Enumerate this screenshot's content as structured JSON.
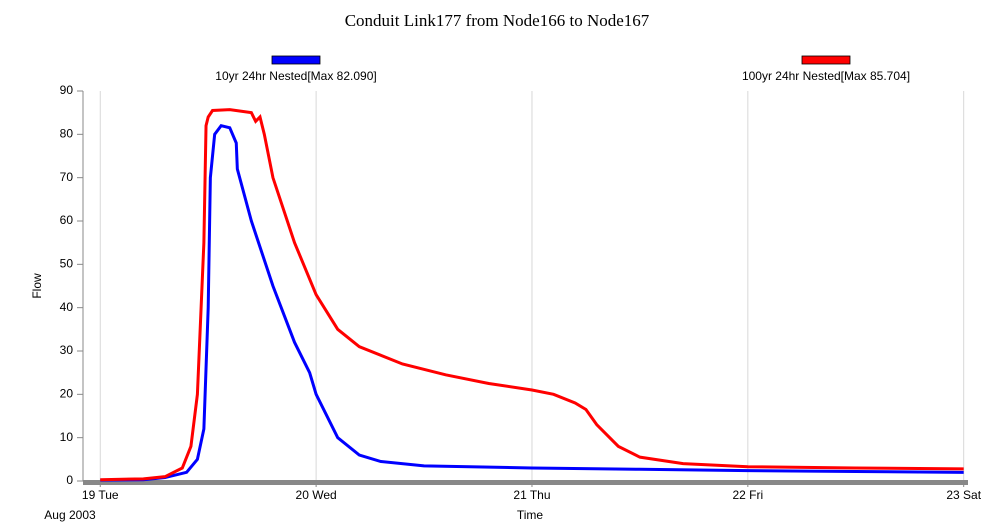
{
  "chart_data": {
    "type": "line",
    "title": "Conduit Link177 from Node166 to Node167",
    "x_label": "Time",
    "y_label": "Flow",
    "x_sublabel": "Aug 2003",
    "xlim": [
      -0.08,
      4.02
    ],
    "xticks": [
      {
        "value": 0,
        "label": "19 Tue"
      },
      {
        "value": 1,
        "label": "20 Wed"
      },
      {
        "value": 2,
        "label": "21 Thu"
      },
      {
        "value": 3,
        "label": "22 Fri"
      },
      {
        "value": 4,
        "label": "23 Sat"
      }
    ],
    "ylim": [
      0,
      90
    ],
    "yticks": [
      0,
      10,
      20,
      30,
      40,
      50,
      60,
      70,
      80,
      90
    ],
    "grid": true,
    "series": [
      {
        "name": "10yr 24hr Nested[Max 82.090]",
        "color": "#0000ff",
        "x": [
          0,
          0.2,
          0.3,
          0.4,
          0.45,
          0.48,
          0.5,
          0.51,
          0.53,
          0.56,
          0.6,
          0.63,
          0.635,
          0.7,
          0.8,
          0.9,
          0.97,
          1.0,
          1.1,
          1.2,
          1.3,
          1.5,
          2,
          2.5,
          3,
          3.5,
          4
        ],
        "values": [
          0.2,
          0.3,
          0.8,
          2,
          5,
          12,
          40,
          70,
          80,
          82,
          81.5,
          78,
          72,
          60,
          45,
          32,
          25,
          20,
          10,
          6,
          4.5,
          3.5,
          3,
          2.7,
          2.4,
          2.2,
          2
        ]
      },
      {
        "name": "100yr 24hr Nested[Max 85.704]",
        "color": "#ff0000",
        "x": [
          0,
          0.2,
          0.3,
          0.38,
          0.42,
          0.45,
          0.48,
          0.49,
          0.5,
          0.52,
          0.6,
          0.7,
          0.72,
          0.74,
          0.76,
          0.8,
          0.9,
          1.0,
          1.1,
          1.2,
          1.4,
          1.6,
          1.8,
          2.0,
          2.1,
          2.2,
          2.25,
          2.3,
          2.4,
          2.5,
          2.7,
          3,
          3.5,
          4
        ],
        "values": [
          0.3,
          0.5,
          1,
          3,
          8,
          20,
          55,
          82,
          84,
          85.5,
          85.7,
          85,
          83,
          84,
          80,
          70,
          55,
          43,
          35,
          31,
          27,
          24.5,
          22.5,
          21,
          20,
          18,
          16.5,
          13,
          8,
          5.5,
          4,
          3.3,
          3,
          2.8
        ]
      }
    ]
  }
}
